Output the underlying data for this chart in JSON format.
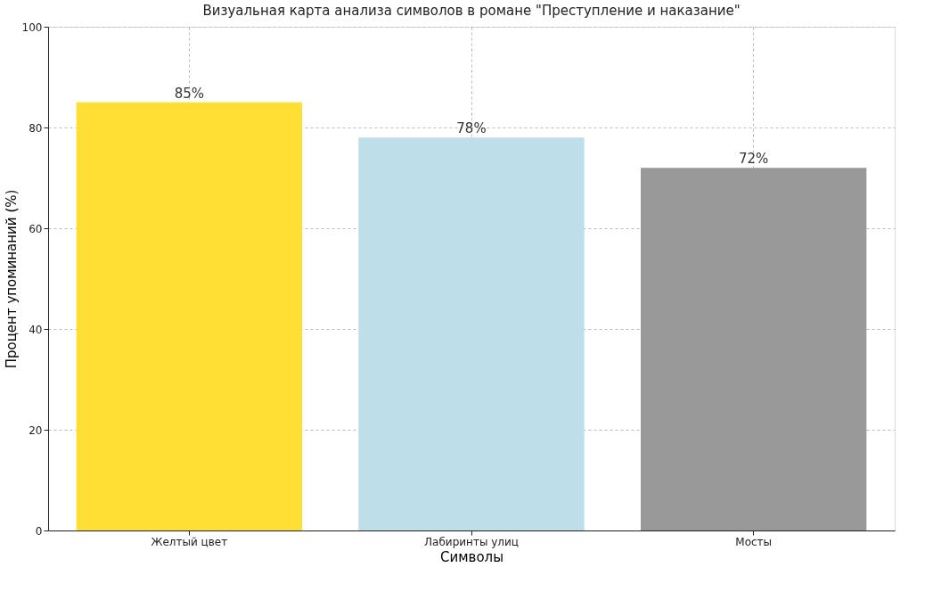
{
  "chart_data": {
    "type": "bar",
    "title": "Визуальная карта анализа символов в романе \"Преступление и наказание\"",
    "xlabel": "Символы",
    "ylabel": "Процент упоминаний (%)",
    "categories": [
      "Желтый цвет",
      "Лабиринты улиц",
      "Мосты"
    ],
    "values": [
      85,
      78,
      72
    ],
    "colors": [
      "#ffdf33",
      "#bedfe9",
      "#999999"
    ],
    "value_labels": [
      "85%",
      "78%",
      "72%"
    ],
    "ylim": [
      0,
      100
    ],
    "yticks": [
      0,
      20,
      40,
      60,
      80,
      100
    ],
    "grid": true
  }
}
